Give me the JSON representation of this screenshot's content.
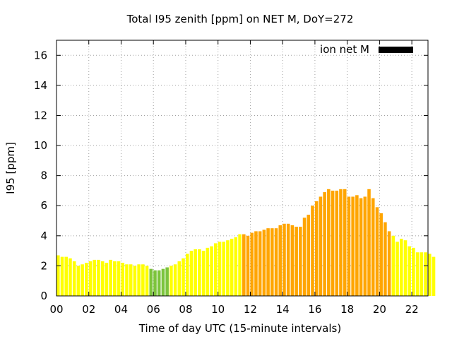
{
  "chart_data": {
    "type": "bar",
    "title": "Total I95 zenith [ppm] on NET M, DoY=272",
    "xlabel": "Time of day UTC (15-minute intervals)",
    "ylabel": "I95 [ppm]",
    "ylim": [
      0,
      17
    ],
    "y_ticks": [
      0,
      2,
      4,
      6,
      8,
      10,
      12,
      14,
      16
    ],
    "xlim": [
      0,
      23
    ],
    "x_ticks": [
      0,
      2,
      4,
      6,
      8,
      10,
      12,
      14,
      16,
      18,
      20,
      22
    ],
    "x_tick_labels": [
      "00",
      "02",
      "04",
      "06",
      "08",
      "10",
      "12",
      "14",
      "16",
      "18",
      "20",
      "22"
    ],
    "grid": true,
    "interval_hours": 0.25,
    "legend": {
      "position": "top-right",
      "entries": [
        {
          "label": "ion net M",
          "color": "#000000"
        }
      ]
    },
    "colors": {
      "low": "#ffff00",
      "very_low": "#7cc43c",
      "medium": "#ffa500"
    },
    "series": [
      {
        "name": "ion net M",
        "values": [
          2.7,
          2.6,
          2.6,
          2.5,
          2.3,
          2.0,
          2.1,
          2.2,
          2.3,
          2.4,
          2.4,
          2.3,
          2.2,
          2.4,
          2.3,
          2.3,
          2.2,
          2.1,
          2.1,
          2.0,
          2.1,
          2.1,
          2.0,
          1.8,
          1.7,
          1.7,
          1.8,
          1.9,
          2.0,
          2.1,
          2.3,
          2.5,
          2.8,
          3.0,
          3.1,
          3.1,
          3.0,
          3.2,
          3.3,
          3.5,
          3.6,
          3.6,
          3.7,
          3.8,
          3.9,
          4.1,
          4.1,
          4.0,
          4.2,
          4.3,
          4.3,
          4.4,
          4.5,
          4.5,
          4.5,
          4.7,
          4.8,
          4.8,
          4.7,
          4.6,
          4.6,
          5.2,
          5.4,
          6.0,
          6.3,
          6.6,
          6.9,
          7.1,
          7.0,
          7.0,
          7.1,
          7.1,
          6.6,
          6.6,
          6.7,
          6.5,
          6.6,
          7.1,
          6.5,
          5.9,
          5.5,
          4.9,
          4.3,
          4.0,
          3.6,
          3.8,
          3.7,
          3.3,
          3.2,
          2.9,
          2.9,
          2.9,
          2.8,
          2.6
        ],
        "categories": [
          "low",
          "low",
          "low",
          "low",
          "low",
          "low",
          "low",
          "low",
          "low",
          "low",
          "low",
          "low",
          "low",
          "low",
          "low",
          "low",
          "low",
          "low",
          "low",
          "low",
          "low",
          "low",
          "low",
          "very_low",
          "very_low",
          "very_low",
          "very_low",
          "very_low",
          "low",
          "low",
          "low",
          "low",
          "low",
          "low",
          "low",
          "low",
          "low",
          "low",
          "low",
          "low",
          "low",
          "low",
          "low",
          "low",
          "low",
          "low",
          "medium",
          "medium",
          "medium",
          "medium",
          "medium",
          "medium",
          "medium",
          "medium",
          "medium",
          "medium",
          "medium",
          "medium",
          "medium",
          "medium",
          "medium",
          "medium",
          "medium",
          "medium",
          "medium",
          "medium",
          "medium",
          "medium",
          "medium",
          "medium",
          "medium",
          "medium",
          "medium",
          "medium",
          "medium",
          "medium",
          "medium",
          "medium",
          "medium",
          "medium",
          "medium",
          "medium",
          "medium",
          "low",
          "low",
          "low",
          "low",
          "low",
          "low",
          "low",
          "low",
          "low",
          "low",
          "low"
        ]
      }
    ]
  }
}
